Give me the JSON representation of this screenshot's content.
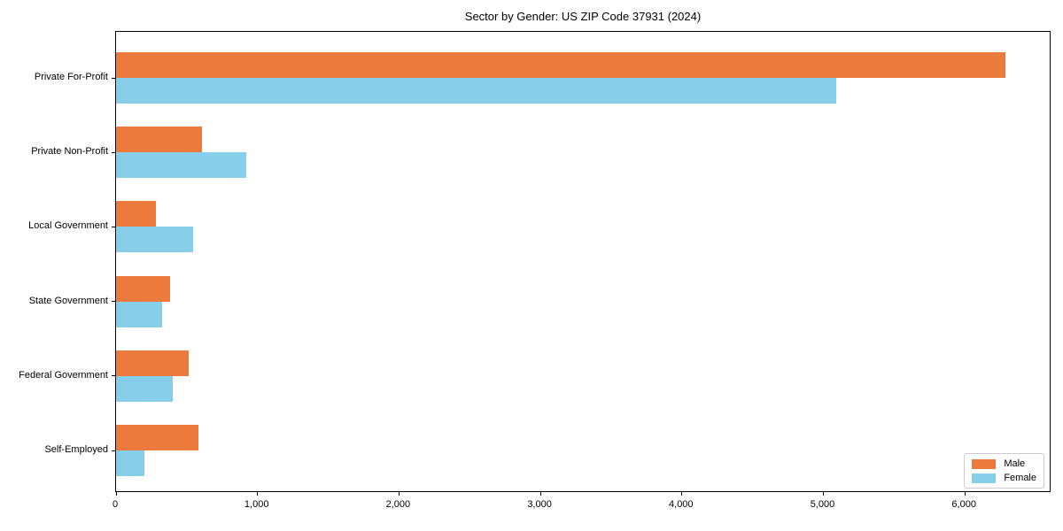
{
  "chart_data": {
    "type": "bar",
    "orientation": "horizontal",
    "title": "Sector by Gender: US ZIP Code 37931 (2024)",
    "categories": [
      "Private For-Profit",
      "Private Non-Profit",
      "Local Government",
      "State Government",
      "Federal Government",
      "Self-Employed"
    ],
    "series": [
      {
        "name": "Male",
        "color": "#ec7a3d",
        "values": [
          6290,
          610,
          280,
          385,
          515,
          580
        ]
      },
      {
        "name": "Female",
        "color": "#87ceeb",
        "values": [
          5090,
          920,
          545,
          325,
          400,
          200
        ]
      }
    ],
    "xlabel": "",
    "ylabel": "",
    "xlim": [
      0,
      6600
    ],
    "x_ticks": [
      {
        "value": 0,
        "label": "0"
      },
      {
        "value": 1000,
        "label": "1,000"
      },
      {
        "value": 2000,
        "label": "2,000"
      },
      {
        "value": 3000,
        "label": "3,000"
      },
      {
        "value": 4000,
        "label": "4,000"
      },
      {
        "value": 5000,
        "label": "5,000"
      },
      {
        "value": 6000,
        "label": "6,000"
      }
    ],
    "grid": false,
    "legend": {
      "position": "lower-right",
      "entries": [
        "Male",
        "Female"
      ]
    }
  },
  "colors": {
    "male": "#ec7a3d",
    "female": "#87ceeb",
    "axis": "#000000",
    "legend_border": "#cccccc",
    "background": "#ffffff"
  }
}
